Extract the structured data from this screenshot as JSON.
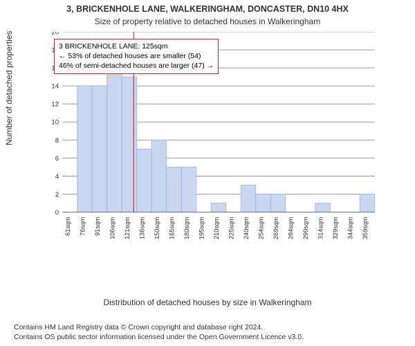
{
  "chart": {
    "type": "histogram",
    "title_line1": "3, BRICKENHOLE LANE, WALKERINGHAM, DONCASTER, DN10 4HX",
    "title_line2": "Size of property relative to detached houses in Walkeringham",
    "title_fontsize": 12,
    "x_label": "Distribution of detached houses by size in Walkeringham",
    "y_label": "Number of detached properties",
    "label_fontsize": 12,
    "tick_fontsize": 11,
    "ylim": [
      0,
      20
    ],
    "ytick_step": 2,
    "xcategories": [
      "61sqm",
      "76sqm",
      "91sqm",
      "106sqm",
      "121sqm",
      "136sqm",
      "150sqm",
      "165sqm",
      "180sqm",
      "195sqm",
      "210sqm",
      "225sqm",
      "240sqm",
      "254sqm",
      "269sqm",
      "284sqm",
      "299sqm",
      "314sqm",
      "329sqm",
      "344sqm",
      "359sqm"
    ],
    "values": [
      0,
      14,
      14,
      17,
      15,
      7,
      8,
      5,
      5,
      0,
      1,
      0,
      3,
      2,
      2,
      0,
      0,
      1,
      0,
      0,
      2
    ],
    "bar_fill": "#c9d8f0",
    "bar_stroke": "#9db6de",
    "bar_width": 1.0,
    "grid_color": "#8a8a8a",
    "background_color": "#ffffff",
    "marker_value": 125,
    "marker_axis_min": 61,
    "marker_axis_step": 14.9,
    "marker_color": "#d22020",
    "annotation": {
      "border_color": "#d22020",
      "line1": "3 BRICKENHOLE LANE: 125sqm",
      "line2": "← 53% of detached houses are smaller (54)",
      "line3": "46% of semi-detached houses are larger (47) →"
    },
    "footer_line1": "Contains HM Land Registry data © Crown copyright and database right 2024.",
    "footer_line2": "Contains OS public sector information licensed under the Open Government Licence v3.0."
  }
}
